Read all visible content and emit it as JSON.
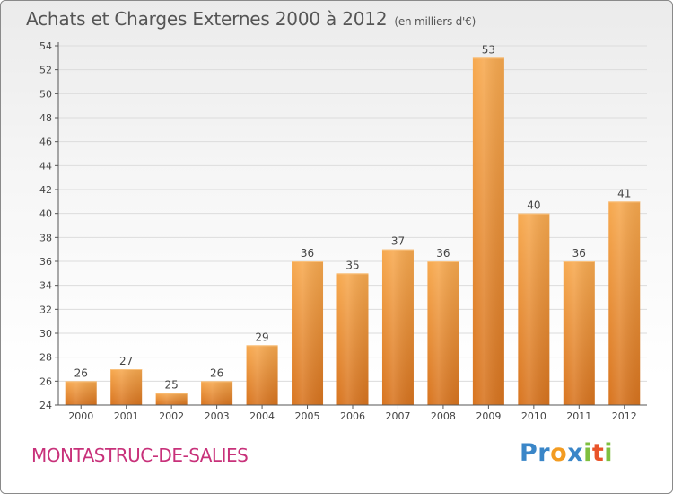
{
  "header": {
    "title": "Achats et Charges Externes 2000 à 2012",
    "unit": "(en milliers d'€)"
  },
  "footer": {
    "commune": "MONTASTRUC-DE-SALIES",
    "logo_letters": [
      "P",
      "r",
      "o",
      "x",
      "i",
      "t",
      "i"
    ],
    "logo_colors": [
      "#3a86c8",
      "#3a86c8",
      "#f39c22",
      "#3a86c8",
      "#7fbf3f",
      "#e9542a",
      "#7fbf3f"
    ]
  },
  "colors": {
    "bar_top": "#f7a94f",
    "bar_bottom": "#d8741f",
    "axis": "#555555",
    "grid": "#dcdcdc",
    "commune": "#c8317a"
  },
  "chart_data": {
    "type": "bar",
    "title": "Achats et Charges Externes 2000 à 2012",
    "subtitle": "(en milliers d'€)",
    "categories": [
      "2000",
      "2001",
      "2002",
      "2003",
      "2004",
      "2005",
      "2006",
      "2007",
      "2008",
      "2009",
      "2010",
      "2011",
      "2012"
    ],
    "values": [
      26,
      27,
      25,
      26,
      29,
      36,
      35,
      37,
      36,
      53,
      40,
      36,
      41
    ],
    "ylim": [
      24,
      54
    ],
    "yticks": [
      24,
      26,
      28,
      30,
      32,
      34,
      36,
      38,
      40,
      42,
      44,
      46,
      48,
      50,
      52,
      54
    ],
    "grid": true,
    "legend": "none"
  }
}
